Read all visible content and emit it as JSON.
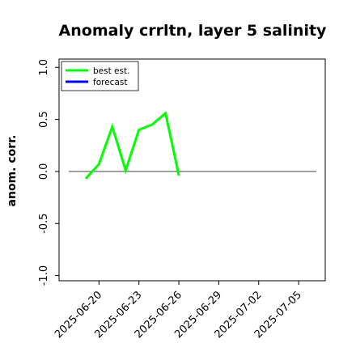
{
  "chart_data": {
    "type": "line",
    "title": "Anomaly crrltn, layer 5 salinity",
    "ylabel": "anom. corr.",
    "xlabel": "",
    "ylim": [
      -1.0,
      1.0
    ],
    "xlim": [
      "2025-06-17",
      "2025-07-07"
    ],
    "yticks": [
      -1.0,
      -0.5,
      0.0,
      0.5,
      1.0
    ],
    "ytick_labels": [
      "-1.0",
      "-0.5",
      "0.0",
      "0.5",
      "1.0"
    ],
    "xticks": [
      "2025-06-20",
      "2025-06-23",
      "2025-06-26",
      "2025-06-29",
      "2025-07-02",
      "2025-07-05"
    ],
    "xtick_labels": [
      "2025-06-20",
      "2025-06-23",
      "2025-06-26",
      "2025-06-29",
      "2025-07-02",
      "2025-07-05"
    ],
    "highlighted_xtick": "2025-06-26",
    "highlight_color": "#2e8b2e",
    "zero_line": true,
    "legend_position": "top-left",
    "series": [
      {
        "name": "best est.",
        "color": "#00ff00",
        "x": [
          "2025-06-19",
          "2025-06-20",
          "2025-06-21",
          "2025-06-22",
          "2025-06-23",
          "2025-06-24",
          "2025-06-25",
          "2025-06-26"
        ],
        "y": [
          -0.07,
          0.07,
          0.43,
          0.01,
          0.4,
          0.45,
          0.56,
          -0.04
        ]
      },
      {
        "name": "forecast",
        "color": "#0000ff",
        "x": [],
        "y": []
      }
    ]
  }
}
